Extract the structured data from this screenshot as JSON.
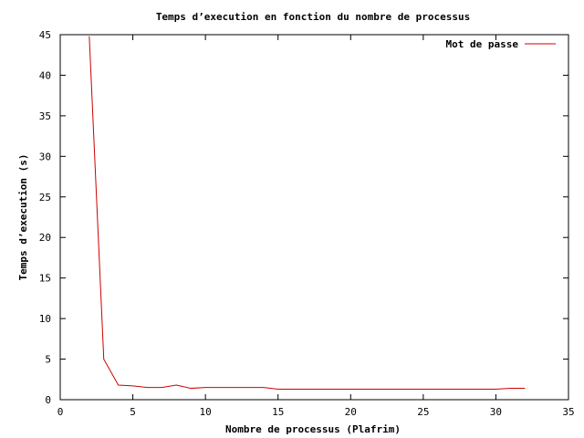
{
  "colors": {
    "background": "#ffffff",
    "axis": "#000000",
    "series": "#cc0000"
  },
  "chart_data": {
    "type": "line",
    "title": "Temps d’execution en fonction du nombre de processus",
    "xlabel": "Nombre de processus (Plafrim)",
    "ylabel": "Temps d’execution (s)",
    "xlim": [
      0,
      35
    ],
    "ylim": [
      0,
      45
    ],
    "xticks": [
      0,
      5,
      10,
      15,
      20,
      25,
      30,
      35
    ],
    "yticks": [
      0,
      5,
      10,
      15,
      20,
      25,
      30,
      35,
      40,
      45
    ],
    "grid": false,
    "legend_position": "top-right",
    "series": [
      {
        "name": "Mot de passe",
        "color": "#cc0000",
        "x": [
          2,
          3,
          4,
          5,
          6,
          7,
          8,
          9,
          10,
          11,
          12,
          13,
          14,
          15,
          16,
          17,
          18,
          19,
          20,
          21,
          22,
          23,
          24,
          25,
          26,
          27,
          28,
          29,
          30,
          31,
          32
        ],
        "y": [
          44.8,
          5.0,
          1.8,
          1.7,
          1.5,
          1.5,
          1.8,
          1.4,
          1.5,
          1.5,
          1.5,
          1.5,
          1.5,
          1.3,
          1.3,
          1.3,
          1.3,
          1.3,
          1.3,
          1.3,
          1.3,
          1.3,
          1.3,
          1.3,
          1.3,
          1.3,
          1.3,
          1.3,
          1.3,
          1.4,
          1.4
        ]
      }
    ]
  }
}
